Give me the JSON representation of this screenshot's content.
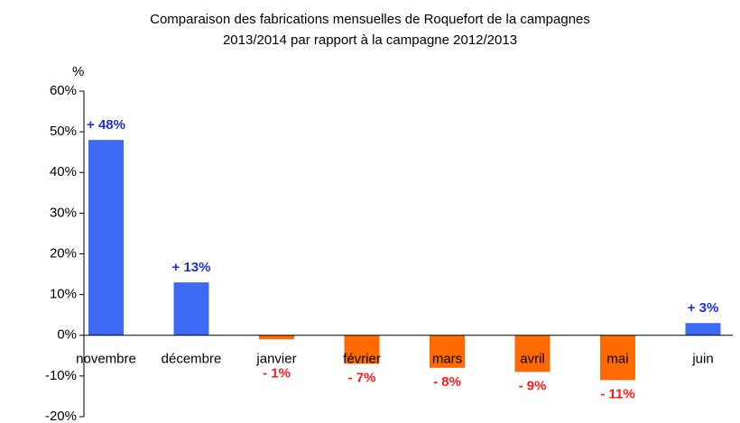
{
  "chart_data": {
    "type": "bar",
    "title": [
      "Comparaison des fabrications mensuelles de Roquefort de la campagnes",
      "2013/2014 par rapport à la campagne 2012/2013"
    ],
    "y_label": "%",
    "categories": [
      "novembre",
      "décembre",
      "janvier",
      "février",
      "mars",
      "avril",
      "mai",
      "juin"
    ],
    "values": [
      48,
      13,
      -1,
      -7,
      -8,
      -9,
      -11,
      3
    ],
    "value_labels": [
      "+ 48%",
      "+ 13%",
      "- 1%",
      "- 7%",
      "- 8%",
      "- 9%",
      "- 11%",
      "+ 3%"
    ],
    "positive_color": "#3d6af5",
    "negative_color": "#ff6a00",
    "positive_label_color": "#1f2fd8",
    "negative_label_color": "#ff1a1a",
    "ylim": [
      -20,
      60
    ],
    "yticks": [
      {
        "value": -20,
        "label": "-20%"
      },
      {
        "value": -10,
        "label": "-10%"
      },
      {
        "value": 0,
        "label": "0%"
      },
      {
        "value": 10,
        "label": "10%"
      },
      {
        "value": 20,
        "label": "20%"
      },
      {
        "value": 30,
        "label": "30%"
      },
      {
        "value": 40,
        "label": "40%"
      },
      {
        "value": 50,
        "label": "50%"
      },
      {
        "value": 60,
        "label": "60%"
      }
    ],
    "grid": false
  }
}
